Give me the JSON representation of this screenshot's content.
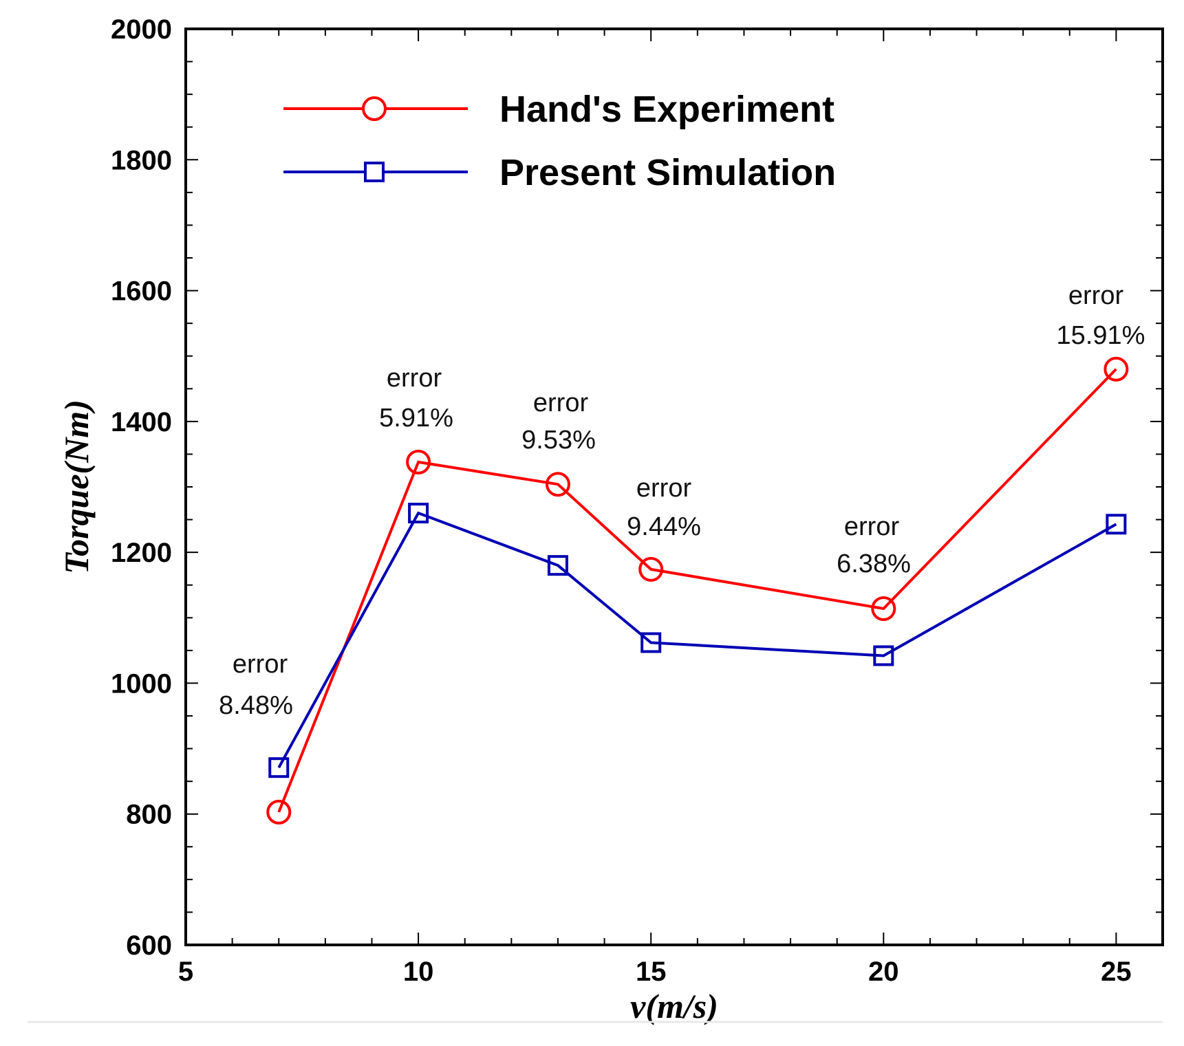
{
  "chart_data": {
    "type": "line",
    "title": "",
    "xlabel": "v(m/s)",
    "ylabel": "Torque(Nm)",
    "xlim": [
      5,
      26
    ],
    "ylim": [
      600,
      2000
    ],
    "x_ticks": [
      5,
      10,
      15,
      20,
      25
    ],
    "y_ticks": [
      600,
      800,
      1000,
      1200,
      1400,
      1600,
      1800,
      2000
    ],
    "x": [
      7,
      10,
      13,
      15,
      20,
      25
    ],
    "series": [
      {
        "name": "Hand's Experiment",
        "color": "#ff0000",
        "marker": "circle",
        "values": [
          803,
          1338,
          1304,
          1174,
          1114,
          1480
        ]
      },
      {
        "name": "Present Simulation",
        "color": "#0000b4",
        "marker": "square",
        "values": [
          871,
          1260,
          1180,
          1062,
          1042,
          1243
        ]
      }
    ],
    "legend": {
      "position": "top-left"
    },
    "annotations": [
      {
        "x": 7,
        "label": "error",
        "value": "8.48%"
      },
      {
        "x": 10,
        "label": "error",
        "value": "5.91%"
      },
      {
        "x": 13,
        "label": "error",
        "value": "9.53%"
      },
      {
        "x": 15,
        "label": "error",
        "value": "9.44%"
      },
      {
        "x": 20,
        "label": "error",
        "value": "6.38%"
      },
      {
        "x": 25,
        "label": "error",
        "value": "15.91%"
      }
    ]
  }
}
